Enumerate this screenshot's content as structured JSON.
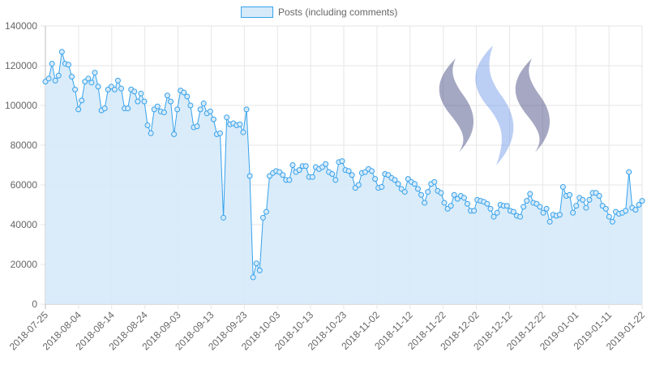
{
  "chart_data": {
    "type": "area",
    "series": [
      {
        "name": "Posts (including comments)",
        "line_color": "#36a2eb",
        "fill_color": "#d6eaf9",
        "values": [
          112000,
          113500,
          121000,
          112500,
          115000,
          127000,
          121000,
          120500,
          114500,
          108000,
          98000,
          102500,
          112000,
          113500,
          111500,
          116500,
          109500,
          97500,
          98500,
          108000,
          109500,
          108000,
          112500,
          108500,
          98500,
          98500,
          108000,
          107000,
          102000,
          106000,
          102000,
          90000,
          86000,
          98000,
          99500,
          97000,
          96500,
          105000,
          102000,
          85500,
          98000,
          107500,
          106500,
          104500,
          100000,
          89000,
          89500,
          98000,
          101000,
          96000,
          97000,
          93000,
          85500,
          86000,
          43500,
          94000,
          90500,
          91000,
          90000,
          90500,
          86500,
          98000,
          64500,
          13500,
          20500,
          17000,
          43500,
          46500,
          64500,
          66000,
          67000,
          66500,
          65000,
          62500,
          62500,
          70000,
          66500,
          67500,
          69500,
          69500,
          64000,
          64000,
          69000,
          68000,
          69000,
          70500,
          66500,
          65500,
          62500,
          71500,
          72000,
          67500,
          67000,
          65000,
          58500,
          60000,
          66000,
          66500,
          68000,
          67000,
          63000,
          58500,
          59000,
          65500,
          65000,
          63500,
          62500,
          60500,
          58000,
          56500,
          63000,
          61500,
          60500,
          58000,
          55000,
          51000,
          56500,
          60500,
          61500,
          57000,
          56000,
          51000,
          48000,
          49500,
          55000,
          53000,
          54500,
          53500,
          50500,
          47000,
          47000,
          52500,
          52000,
          51500,
          50500,
          48000,
          44000,
          46000,
          50000,
          49500,
          49500,
          47000,
          46500,
          44500,
          44000,
          49000,
          52000,
          55500,
          51000,
          50500,
          49000,
          46000,
          48000,
          41500,
          45000,
          44500,
          45000,
          59000,
          54500,
          55000,
          46000,
          49500,
          53500,
          52500,
          48500,
          52500,
          56000,
          56000,
          54500,
          49500,
          48000,
          44000,
          41500,
          46500,
          45500,
          46000,
          47000,
          66500,
          48500,
          47500,
          50000,
          52000
        ]
      }
    ],
    "x_tick_labels": [
      "2018-07-25",
      "2018-08-04",
      "2018-08-14",
      "2018-08-24",
      "2018-09-03",
      "2018-09-13",
      "2018-09-23",
      "2018-10-03",
      "2018-10-13",
      "2018-10-23",
      "2018-11-02",
      "2018-11-12",
      "2018-11-22",
      "2018-12-02",
      "2018-12-12",
      "2018-12-22",
      "2019-01-01",
      "2019-01-11",
      "2019-01-22"
    ],
    "y_tick_labels": [
      "0",
      "20000",
      "40000",
      "60000",
      "80000",
      "100000",
      "120000",
      "140000"
    ],
    "ylim": [
      0,
      140000
    ],
    "grid": true,
    "legend_position": "top",
    "logo": "steem-logo"
  }
}
